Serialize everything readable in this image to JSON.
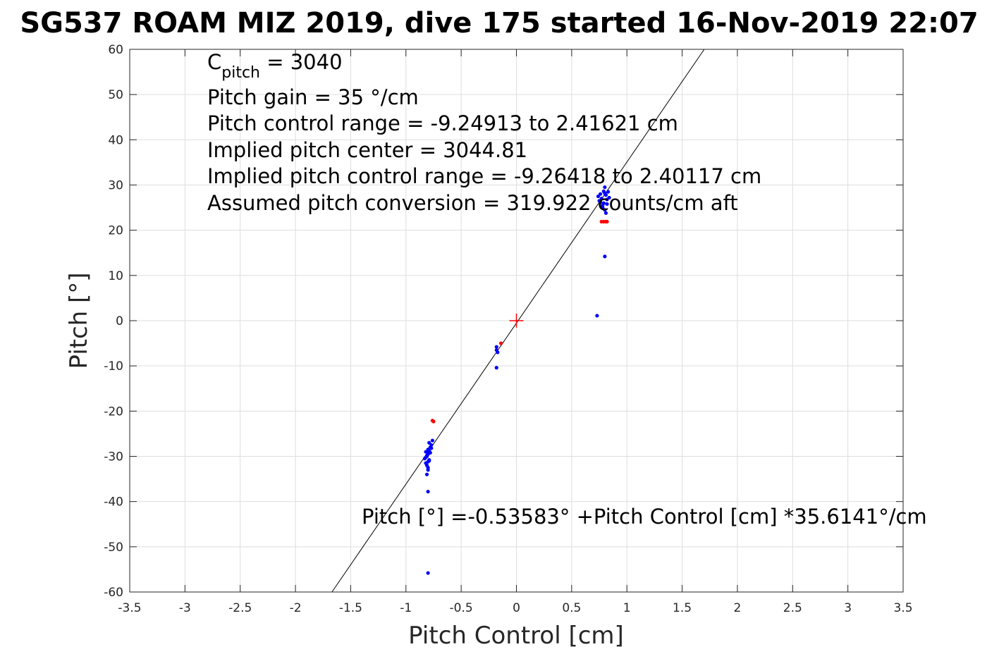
{
  "chart_data": {
    "type": "scatter",
    "title": "SG537 ROAM MIZ 2019, dive 175 started 16-Nov-2019 22:07",
    "xlabel": "Pitch Control [cm]",
    "ylabel": "Pitch [°]",
    "xlim": [
      -3.5,
      3.5
    ],
    "ylim": [
      -60,
      60
    ],
    "xticks": [
      -3.5,
      -3,
      -2.5,
      -2,
      -1.5,
      -1,
      -0.5,
      0,
      0.5,
      1,
      1.5,
      2,
      2.5,
      3,
      3.5
    ],
    "yticks": [
      -60,
      -50,
      -40,
      -30,
      -20,
      -10,
      0,
      10,
      20,
      30,
      40,
      50,
      60
    ],
    "grid": true,
    "fit_line": {
      "intercept": -0.53583,
      "slope": 35.6141
    },
    "center_marker": {
      "x": 0,
      "y": 0,
      "color": "#ff0000"
    },
    "annotations": {
      "c_pitch_main": "C",
      "c_pitch_sub": "pitch",
      "c_pitch_value": " = 3040",
      "line2": "Pitch gain = 35 °/cm",
      "line3": "Pitch control range = -9.24913 to 2.41621 cm",
      "line4": "Implied pitch center = 3044.81",
      "line5": "Implied pitch control range = -9.26418 to 2.40117 cm",
      "line6": "Assumed pitch conversion = 319.922 counts/cm aft",
      "fit_equation": "Pitch [°] =-0.53583° +Pitch Control [cm] *35.6141°/cm"
    },
    "series": [
      {
        "color": "#0000ff",
        "points": [
          [
            -0.82,
            -29.0
          ],
          [
            -0.8,
            -29.5
          ],
          [
            -0.81,
            -30.0
          ],
          [
            -0.83,
            -30.5
          ],
          [
            -0.79,
            -31.0
          ],
          [
            -0.8,
            -28.5
          ],
          [
            -0.78,
            -28.0
          ],
          [
            -0.77,
            -27.5
          ],
          [
            -0.82,
            -31.5
          ],
          [
            -0.81,
            -32.0
          ],
          [
            -0.8,
            -32.5
          ],
          [
            -0.79,
            -27.0
          ],
          [
            -0.76,
            -26.5
          ],
          [
            -0.82,
            -30.2
          ],
          [
            -0.8,
            -31.2
          ],
          [
            -0.81,
            -29.8
          ],
          [
            -0.78,
            -29.2
          ],
          [
            -0.79,
            -30.8
          ],
          [
            -0.8,
            -33.0
          ],
          [
            -0.81,
            -34.0
          ],
          [
            -0.79,
            -28.8
          ],
          [
            -0.77,
            -28.2
          ],
          [
            -0.8,
            -37.8
          ],
          [
            -0.8,
            -55.8
          ],
          [
            -0.18,
            -5.8
          ],
          [
            -0.18,
            -6.5
          ],
          [
            -0.17,
            -7.0
          ],
          [
            -0.18,
            -10.4
          ],
          [
            0.74,
            27.5
          ],
          [
            0.75,
            26.5
          ],
          [
            0.76,
            28.0
          ],
          [
            0.77,
            27.0
          ],
          [
            0.78,
            25.5
          ],
          [
            0.79,
            26.0
          ],
          [
            0.8,
            28.2
          ],
          [
            0.8,
            24.5
          ],
          [
            0.81,
            27.8
          ],
          [
            0.82,
            26.8
          ],
          [
            0.83,
            28.5
          ],
          [
            0.84,
            27.2
          ],
          [
            0.78,
            25.0
          ],
          [
            0.8,
            29.5
          ],
          [
            0.81,
            23.8
          ],
          [
            0.82,
            25.8
          ],
          [
            0.76,
            26.2
          ],
          [
            0.79,
            28.6
          ],
          [
            0.8,
            14.2
          ],
          [
            0.73,
            1.1
          ]
        ]
      },
      {
        "color": "#ff0000",
        "points": [
          [
            -0.76,
            -22.1
          ],
          [
            -0.75,
            -22.3
          ],
          [
            -0.14,
            -5.0
          ],
          [
            0.77,
            21.9
          ],
          [
            0.79,
            21.9
          ],
          [
            0.81,
            21.9
          ],
          [
            0.82,
            21.9
          ]
        ]
      }
    ]
  }
}
